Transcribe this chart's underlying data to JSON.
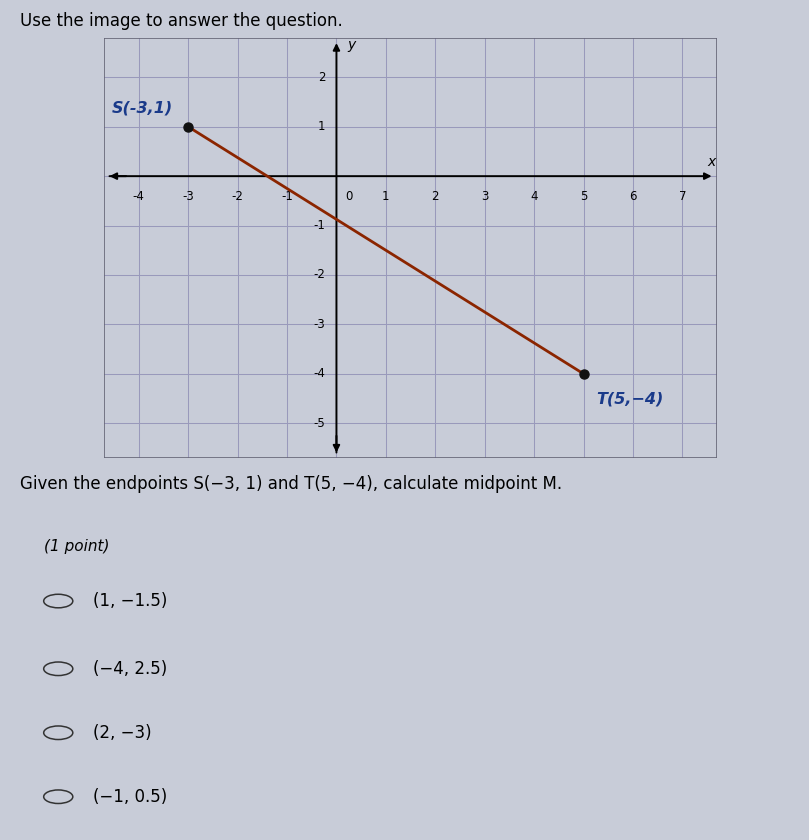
{
  "title": "Use the image to answer the question.",
  "graph": {
    "xlim": [
      -4.7,
      7.7
    ],
    "ylim": [
      -5.7,
      2.8
    ],
    "xticks": [
      -4,
      -3,
      -2,
      -1,
      0,
      1,
      2,
      3,
      4,
      5,
      6,
      7
    ],
    "yticks": [
      -5,
      -4,
      -3,
      -2,
      -1,
      0,
      1,
      2
    ],
    "xlabel": "x",
    "ylabel": "y",
    "point_S": [
      -3,
      1
    ],
    "point_T": [
      5,
      -4
    ],
    "label_S": "S(-3,1)",
    "label_T": "T(5,−4)",
    "line_color": "#8B2500",
    "point_color": "#111111",
    "grid_color": "#9999bb",
    "bg_color": "#d8dce8"
  },
  "question": "Given the endpoints S(−3, 1) and T(5, −4), calculate midpoint M.",
  "point_label": "(1 point)",
  "choices": [
    "(1, −1.5)",
    "(−4, 2.5)",
    "(2, −3)",
    "(−1, 0.5)"
  ],
  "outer_bg": "#c8ccd8",
  "label_color": "#1a3a8a",
  "tick_fontsize": 8.5,
  "axis_label_fontsize": 10,
  "question_fontsize": 12,
  "choice_fontsize": 12,
  "point_label_fontsize": 11.5
}
